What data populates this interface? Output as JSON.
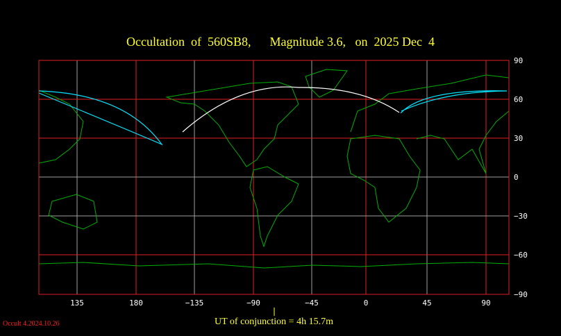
{
  "title": "Occultation  of  560SB8,      Magnitude 3.6,   on  2025 Dec  4",
  "lon_ticks": [
    "135",
    "180",
    "−135",
    "−90",
    "−45",
    "0",
    "45",
    "90"
  ],
  "lat_ticks": [
    "90",
    "60",
    "30",
    "0",
    "−30",
    "−60",
    "−90"
  ],
  "ut_label": "UT of conjunction =  4h 15.7m",
  "version": "Occult 4.2024.10.26",
  "colors": {
    "grid_major": "#e02020",
    "grid_minor": "#a0a0a0",
    "coast": "#00b000",
    "path": "#ffffff",
    "limit": "#00e5ff",
    "title": "#ffff33"
  }
}
